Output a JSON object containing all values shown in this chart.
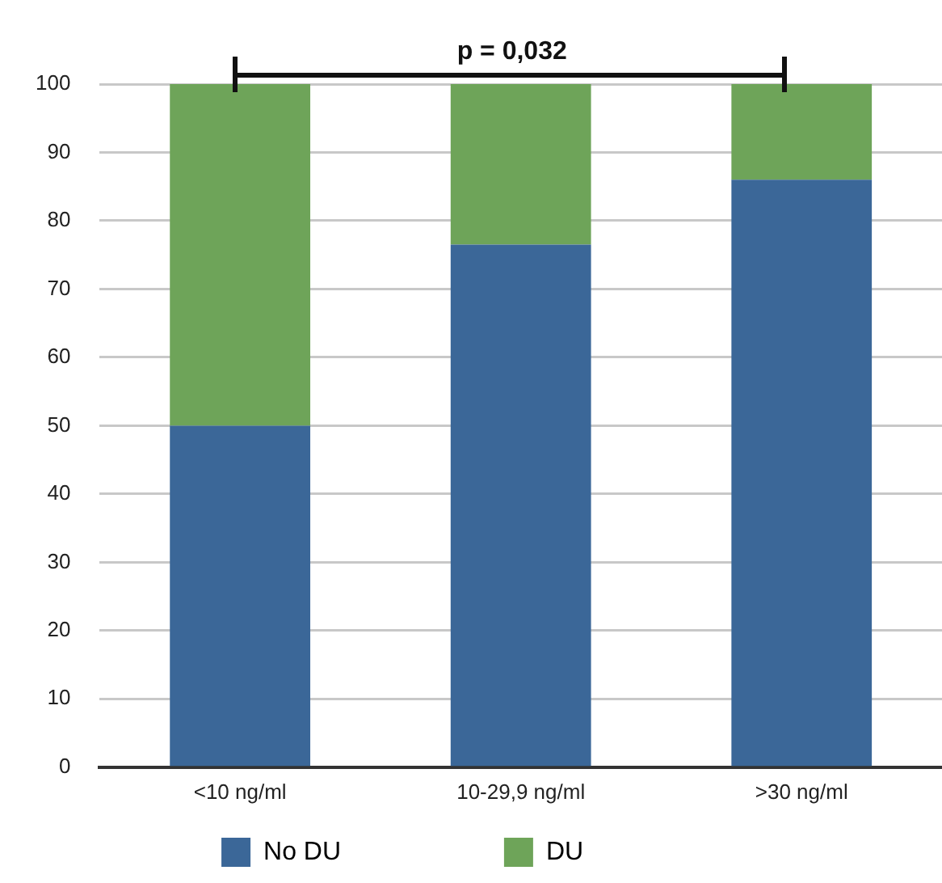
{
  "chart_data": {
    "type": "bar",
    "stacked": true,
    "categories": [
      "<10 ng/ml",
      "10-29,9 ng/ml",
      ">30 ng/ml"
    ],
    "series": [
      {
        "name": "No DU",
        "color": "#3b6798",
        "values": [
          50,
          76.5,
          86
        ]
      },
      {
        "name": "DU",
        "color": "#6ea459",
        "values": [
          50,
          23.5,
          14
        ]
      }
    ],
    "ylim": [
      0,
      100
    ],
    "yticks": [
      0,
      10,
      20,
      30,
      40,
      50,
      60,
      70,
      80,
      90,
      100
    ],
    "grid": "y",
    "legend": "bottom",
    "annotations": [
      {
        "text": "p = 0,032"
      }
    ]
  }
}
